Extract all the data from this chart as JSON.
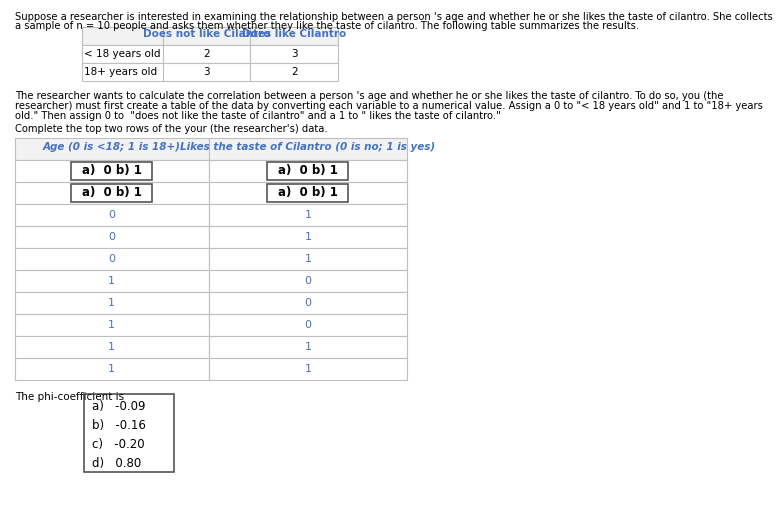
{
  "intro_text_line1": "Suppose a researcher is interested in examining the relationship between a person 's age and whether he or she likes the taste of cilantro. She collects",
  "intro_text_line2": "a sample of n = 10 people and asks them whether they like the taste of cilantro. The following table summarizes the results.",
  "summary_col_headers": [
    "",
    "Does not like Cilantro",
    "Does like Cilantro"
  ],
  "summary_rows": [
    [
      "< 18 years old",
      "2",
      "3"
    ],
    [
      "18+ years old",
      "3",
      "2"
    ]
  ],
  "middle_text_line1": "The researcher wants to calculate the correlation between a person 's age and whether he or she likes the taste of cilantro. To do so, you (the",
  "middle_text_line2": "researcher) must first create a table of the data by converting each variable to a numerical value. Assign a 0 to \"< 18 years old\" and 1 to \"18+ years",
  "middle_text_line3": "old.\" Then assign 0 to  \"does not like the taste of cilantro\" and a 1 to \" likes the taste of cilantro.\"",
  "complete_text": "Complete the top two rows of the your (the researcher's) data.",
  "data_table_col1_header": "Age (0 is <18; 1 is 18+)",
  "data_table_col2_header": "Likes the taste of Cilantro (0 is no; 1 is yes)",
  "row1_answer": "a)  0 b) 1",
  "row2_answer": "a)  0 b) 1",
  "data_values_col1": [
    "0",
    "0",
    "0",
    "1",
    "1",
    "1",
    "1",
    "1"
  ],
  "data_values_col2": [
    "1",
    "1",
    "1",
    "0",
    "0",
    "0",
    "1",
    "1"
  ],
  "phi_text": "The phi-coefficient is",
  "phi_options": [
    "a)   -0.09",
    "b)   -0.16",
    "c)   -0.20",
    "d)   0.80"
  ],
  "bg_color": "#ffffff",
  "text_color": "#000000",
  "blue_color": "#4472c4",
  "header_text_color": "#4472c4",
  "gray_bg": "#f2f2f2",
  "border_color": "#bfbfbf",
  "dark_border": "#555555"
}
